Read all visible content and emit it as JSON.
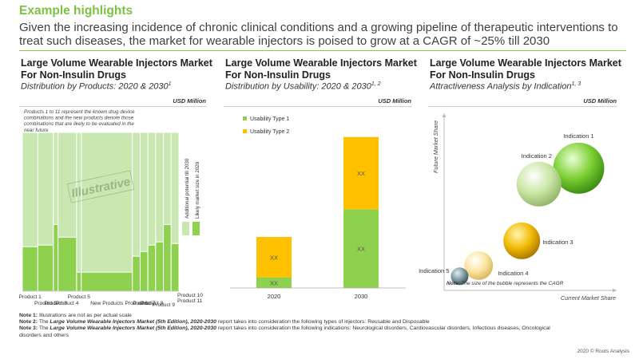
{
  "header": {
    "title": "Example highlights",
    "text": "Given the increasing incidence of chronic clinical conditions and a growing pipeline of therapeutic interventions to treat such diseases, the market for wearable injectors is poised to grow at a CAGR of ~25% till 2030"
  },
  "colors": {
    "green": "#8ed14f",
    "light_green": "#c9e8b1",
    "yellow": "#ffc000",
    "accent": "#7cc242"
  },
  "panels": {
    "left": {
      "title": "Large Volume Wearable Injectors Market For Non-Insulin Drugs",
      "subtitle": "Distribution by Products: 2020 & 2030",
      "subtitle_sup": "1",
      "unit": "USD Million"
    },
    "middle": {
      "title": "Large Volume Wearable Injectors Market For Non-Insulin Drugs",
      "subtitle": "Distribution by Usability: 2020 & 2030",
      "subtitle_sup": "1, 2",
      "unit": "USD Million"
    },
    "right": {
      "title": "Large Volume Wearable Injectors Market For Non-Insulin Drugs",
      "subtitle": "Attractiveness Analysis by Indication",
      "subtitle_sup": "1, 3",
      "unit": "USD Million"
    }
  },
  "chart_data": [
    {
      "type": "bar",
      "title": "Distribution by Products: 2020 & 2030",
      "annotation": "Products 1 to 11 represent the known drug device combinations and the new products denote those combinations that are likely to be evaluated in the near future",
      "watermark": "Illustrative",
      "legend": [
        "Additional potential till 2030",
        "Likely market size in 2020"
      ],
      "categories": [
        "Product 1",
        "Product 2",
        "Product 3",
        "Product 4",
        "Product 5",
        "New Products",
        "Product 6",
        "Product 7",
        "Product 8",
        "Product 9",
        "Product 10",
        "Product 11"
      ],
      "values_2020": [
        28,
        29,
        42,
        34,
        12,
        12,
        22,
        25,
        29,
        31,
        42,
        30
      ],
      "values_2030": [
        100,
        100,
        100,
        100,
        100,
        100,
        100,
        100,
        100,
        100,
        100,
        100
      ],
      "widths": [
        1,
        1,
        0.3,
        1.2,
        0.3,
        3.3,
        0.5,
        0.5,
        0.5,
        0.5,
        0.5,
        0.5
      ],
      "ylim": [
        0,
        100
      ]
    },
    {
      "type": "bar",
      "stacked": true,
      "title": "Distribution by Usability: 2020 & 2030",
      "categories": [
        "2020",
        "2030"
      ],
      "series": [
        {
          "name": "Usability Type 1",
          "values": [
            5,
            37
          ],
          "labels": [
            "XX",
            "XX"
          ]
        },
        {
          "name": "Usability Type 2",
          "values": [
            19,
            34
          ],
          "labels": [
            "XX",
            "XX"
          ]
        }
      ],
      "ylim": [
        0,
        75
      ]
    },
    {
      "type": "scatter",
      "title": "Attractiveness Analysis by Indication",
      "xlabel": "Current  Market Share",
      "ylabel": "Future Market Share",
      "note": "The size of the bubble represents the CAGR",
      "points": [
        {
          "label": "Indication 1",
          "x": 78,
          "y": 69,
          "size": 32,
          "color": "green"
        },
        {
          "label": "Indication 2",
          "x": 55,
          "y": 60,
          "size": 28,
          "color": "light_green"
        },
        {
          "label": "Indication 3",
          "x": 45,
          "y": 28,
          "size": 23,
          "color": "yellow"
        },
        {
          "label": "Indication 4",
          "x": 20,
          "y": 14,
          "size": 18,
          "color": "light_yellow"
        },
        {
          "label": "Indication 5",
          "x": 9,
          "y": 8,
          "size": 11,
          "color": "grey"
        }
      ],
      "xlim": [
        0,
        100
      ],
      "ylim": [
        0,
        100
      ]
    }
  ],
  "notes": [
    {
      "label": "Note 1:",
      "text": "Illustrations are not as per actual scale"
    },
    {
      "label": "Note 2:",
      "pre": "The",
      "title": "Large Volume Wearable Injectors Market (5th Edition), 2020-2030",
      "text": "report takes into consideration the following types of injectors: Reusable and Disposable"
    },
    {
      "label": "Note 3:",
      "pre": "The",
      "title": "Large Volume Wearable Injectors Market (5th Edition), 2020-2030",
      "text": "report takes into consideration the following indications: Neurological disorders, Cardiovascular disorders, Infectious diseases, Oncological disorders and others"
    }
  ],
  "footer": "2020 © Roots Analysis"
}
